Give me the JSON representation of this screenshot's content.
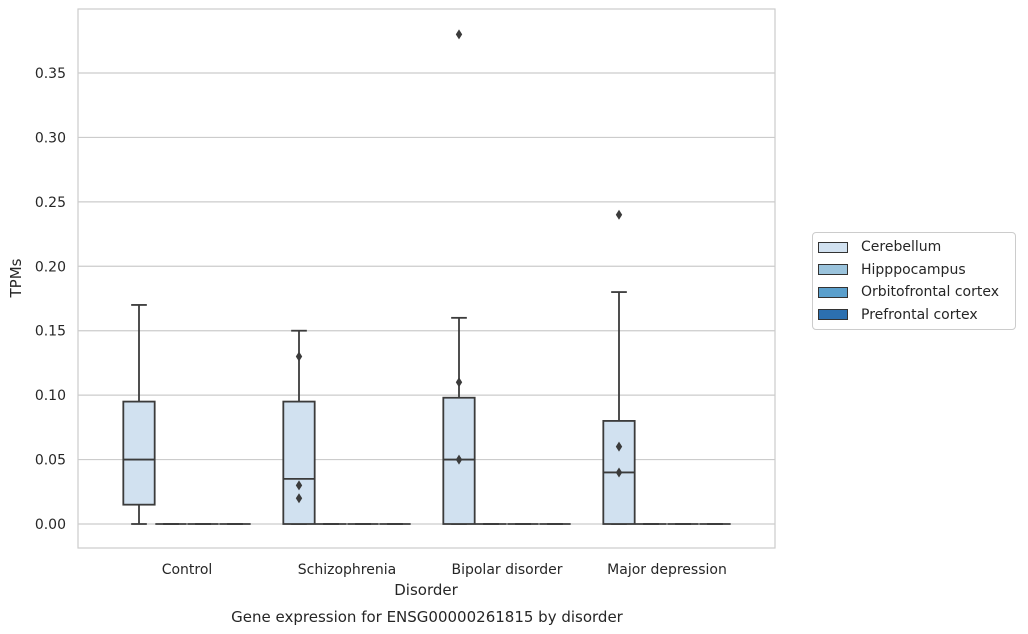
{
  "chart_data": {
    "type": "box",
    "title": "",
    "caption": "Gene expression for ENSG00000261815 by disorder",
    "xlabel": "Disorder",
    "ylabel": "TPMs",
    "ylim": [
      -0.018,
      0.398
    ],
    "yticks": [
      0.0,
      0.05,
      0.1,
      0.15,
      0.2,
      0.25,
      0.3,
      0.35
    ],
    "ytick_labels": [
      "0.00",
      "0.05",
      "0.10",
      "0.15",
      "0.20",
      "0.25",
      "0.30",
      "0.35"
    ],
    "grid": "horizontal",
    "legend_position": "right, outside",
    "categories": [
      "Control",
      "Schizophrenia",
      "Bipolar disorder",
      "Major depression"
    ],
    "series": [
      {
        "name": "Cerebellum",
        "color": "#d1e1f0",
        "boxes": [
          {
            "whisker_low": 0.0,
            "q1": 0.015,
            "median": 0.05,
            "q3": 0.095,
            "whisker_high": 0.17,
            "outliers": []
          },
          {
            "whisker_low": 0.0,
            "q1": 0.0,
            "median": 0.035,
            "q3": 0.095,
            "whisker_high": 0.15,
            "outliers": [
              0.13,
              0.03,
              0.02
            ]
          },
          {
            "whisker_low": 0.0,
            "q1": 0.0,
            "median": 0.05,
            "q3": 0.098,
            "whisker_high": 0.16,
            "outliers": [
              0.38,
              0.11,
              0.05
            ]
          },
          {
            "whisker_low": 0.0,
            "q1": 0.0,
            "median": 0.04,
            "q3": 0.08,
            "whisker_high": 0.18,
            "outliers": [
              0.24,
              0.06,
              0.04
            ]
          }
        ]
      },
      {
        "name": "Hipppocampus",
        "color": "#9ac3dc",
        "boxes": [
          {
            "whisker_low": 0.0,
            "q1": 0.0,
            "median": 0.0,
            "q3": 0.0,
            "whisker_high": 0.0,
            "outliers": []
          },
          {
            "whisker_low": 0.0,
            "q1": 0.0,
            "median": 0.0,
            "q3": 0.0,
            "whisker_high": 0.0,
            "outliers": []
          },
          {
            "whisker_low": 0.0,
            "q1": 0.0,
            "median": 0.0,
            "q3": 0.0,
            "whisker_high": 0.0,
            "outliers": []
          },
          {
            "whisker_low": 0.0,
            "q1": 0.0,
            "median": 0.0,
            "q3": 0.0,
            "whisker_high": 0.0,
            "outliers": []
          }
        ]
      },
      {
        "name": "Orbitofrontal cortex",
        "color": "#5a9fcc",
        "boxes": [
          {
            "whisker_low": 0.0,
            "q1": 0.0,
            "median": 0.0,
            "q3": 0.0,
            "whisker_high": 0.0,
            "outliers": []
          },
          {
            "whisker_low": 0.0,
            "q1": 0.0,
            "median": 0.0,
            "q3": 0.0,
            "whisker_high": 0.0,
            "outliers": []
          },
          {
            "whisker_low": 0.0,
            "q1": 0.0,
            "median": 0.0,
            "q3": 0.0,
            "whisker_high": 0.0,
            "outliers": []
          },
          {
            "whisker_low": 0.0,
            "q1": 0.0,
            "median": 0.0,
            "q3": 0.0,
            "whisker_high": 0.0,
            "outliers": []
          }
        ]
      },
      {
        "name": "Prefrontal cortex",
        "color": "#2c70b0",
        "boxes": [
          {
            "whisker_low": 0.0,
            "q1": 0.0,
            "median": 0.0,
            "q3": 0.0,
            "whisker_high": 0.0,
            "outliers": []
          },
          {
            "whisker_low": 0.0,
            "q1": 0.0,
            "median": 0.0,
            "q3": 0.0,
            "whisker_high": 0.0,
            "outliers": []
          },
          {
            "whisker_low": 0.0,
            "q1": 0.0,
            "median": 0.0,
            "q3": 0.0,
            "whisker_high": 0.0,
            "outliers": []
          },
          {
            "whisker_low": 0.0,
            "q1": 0.0,
            "median": 0.0,
            "q3": 0.0,
            "whisker_high": 0.0,
            "outliers": []
          }
        ]
      }
    ]
  }
}
